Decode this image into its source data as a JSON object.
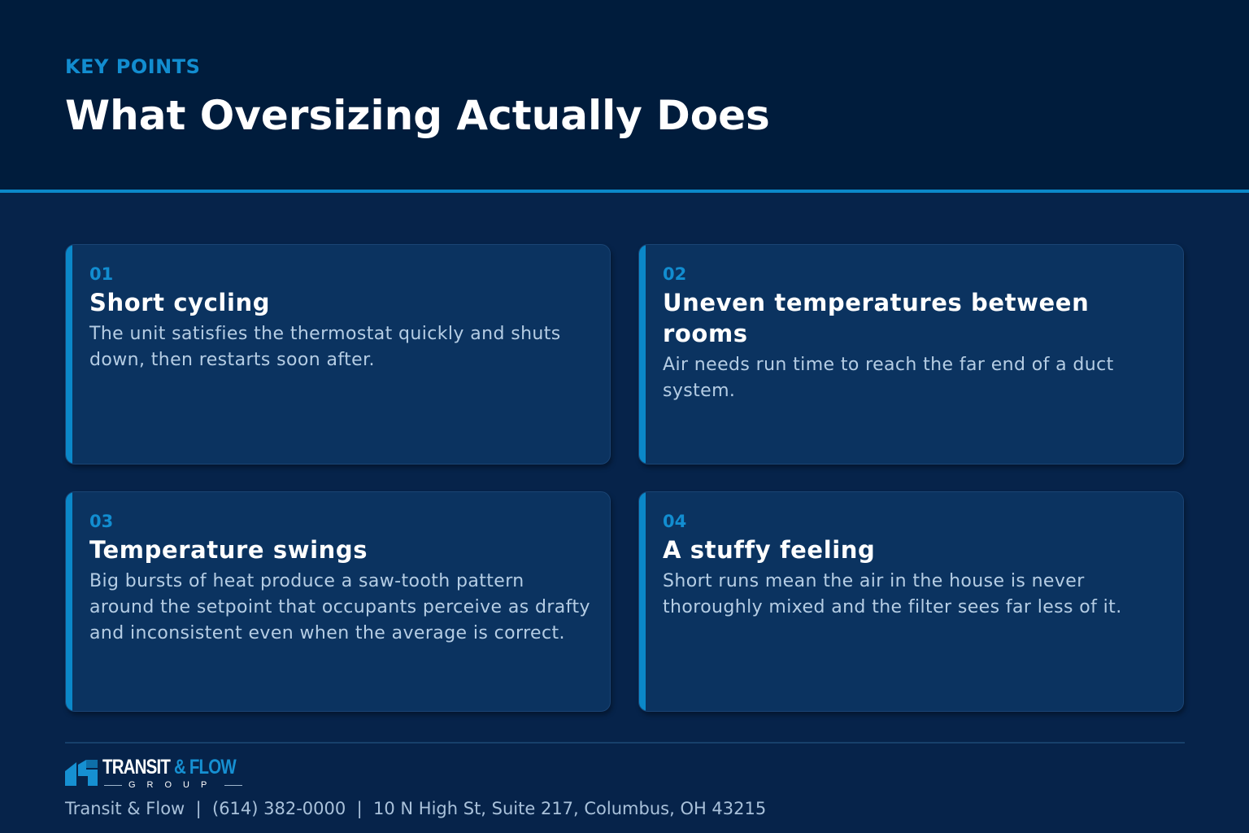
{
  "header": {
    "eyebrow": "KEY POINTS",
    "title": "What Oversizing Actually Does"
  },
  "cards": [
    {
      "number": "01",
      "heading": "Short cycling",
      "body": "The unit satisfies the thermostat quickly and shuts down, then restarts soon after."
    },
    {
      "number": "02",
      "heading": "Uneven temperatures between rooms",
      "body": "Air needs run time to reach the far end of a duct system."
    },
    {
      "number": "03",
      "heading": "Temperature swings",
      "body": "Big bursts of heat produce a saw-tooth pattern around the setpoint that occupants perceive as drafty and inconsistent even when the average is correct."
    },
    {
      "number": "04",
      "heading": "A stuffy feeling",
      "body": "Short runs mean the air in the house is never thoroughly mixed and the filter sees far less of it."
    }
  ],
  "footer": {
    "logo": {
      "word1": "TRANSIT",
      "word2": "& FLOW",
      "sub": "GROUP",
      "icon": "transit-flow-logo-mark"
    },
    "contact": "Transit & Flow  |  (614) 382-0000  |  10 N High St, Suite 217, Columbus, OH 43215"
  },
  "colors": {
    "background": "#06234a",
    "header_background": "#001c3c",
    "accent": "#0b88c9",
    "card_background": "#0b3360",
    "heading_text": "#ffffff",
    "body_text": "#b5cde4"
  }
}
